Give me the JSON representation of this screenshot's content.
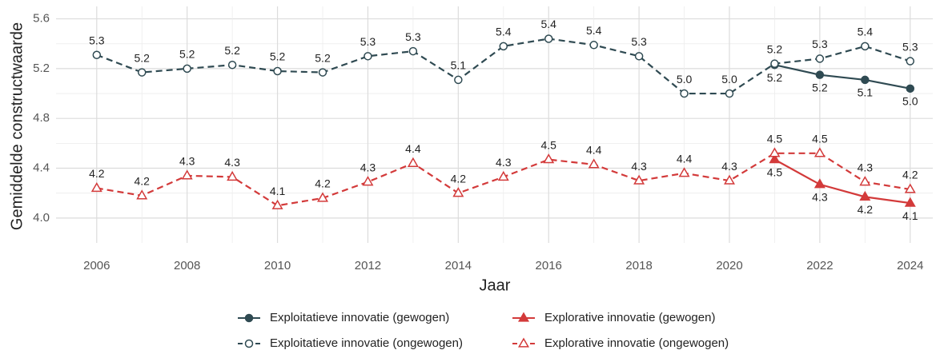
{
  "chart_data": {
    "type": "line",
    "y_label": "Gemiddelde constructwaarde",
    "x_label": "Jaar",
    "x": [
      2006,
      2007,
      2008,
      2009,
      2010,
      2011,
      2012,
      2013,
      2014,
      2015,
      2016,
      2017,
      2018,
      2019,
      2020,
      2021,
      2022,
      2023,
      2024
    ],
    "xlim": [
      2005.1,
      2024.5
    ],
    "xticks": [
      2006,
      2008,
      2010,
      2012,
      2014,
      2016,
      2018,
      2020,
      2022,
      2024
    ],
    "ylim": [
      3.8,
      5.7
    ],
    "yticks": [
      {
        "value": 4,
        "label": "4.0"
      },
      4.4,
      4.8,
      5.2,
      5.6
    ],
    "grid": true,
    "legend": "bottom",
    "series": [
      {
        "name": "Exploitatieve innovatie (gewogen)",
        "color": "#2f4a52",
        "dashed": false,
        "marker": "circle",
        "filled": true,
        "values": [
          null,
          null,
          null,
          null,
          null,
          null,
          null,
          null,
          null,
          null,
          null,
          null,
          null,
          null,
          null,
          5.23,
          5.15,
          5.11,
          5.04
        ],
        "value_labels": [
          null,
          null,
          null,
          null,
          null,
          null,
          null,
          null,
          null,
          null,
          null,
          null,
          null,
          null,
          null,
          "5.2",
          "5.2",
          "5.1",
          "5.0"
        ]
      },
      {
        "name": "Explorative innovatie (gewogen)",
        "color": "#d33a3a",
        "dashed": false,
        "marker": "triangle",
        "filled": true,
        "values": [
          null,
          null,
          null,
          null,
          null,
          null,
          null,
          null,
          null,
          null,
          null,
          null,
          null,
          null,
          null,
          4.47,
          4.27,
          4.17,
          4.12
        ],
        "value_labels": [
          null,
          null,
          null,
          null,
          null,
          null,
          null,
          null,
          null,
          null,
          null,
          null,
          null,
          null,
          null,
          "4.5",
          "4.3",
          "4.2",
          "4.1"
        ]
      },
      {
        "name": "Exploitatieve innovatie (ongewogen)",
        "color": "#2f4a52",
        "dashed": true,
        "marker": "circle",
        "filled": false,
        "values": [
          5.31,
          5.17,
          5.2,
          5.23,
          5.18,
          5.17,
          5.3,
          5.34,
          5.11,
          5.38,
          5.44,
          5.39,
          5.3,
          5.0,
          5.0,
          5.24,
          5.28,
          5.38,
          5.26
        ],
        "value_labels": [
          "5.3",
          "5.2",
          "5.2",
          "5.2",
          "5.2",
          "5.2",
          "5.3",
          "5.3",
          "5.1",
          "5.4",
          "5.4",
          "5.4",
          "5.3",
          "5.0",
          "5.0",
          "5.2",
          "5.3",
          "5.4",
          "5.3"
        ]
      },
      {
        "name": "Explorative innovatie (ongewogen)",
        "color": "#d33a3a",
        "dashed": true,
        "marker": "triangle",
        "filled": false,
        "values": [
          4.24,
          4.18,
          4.34,
          4.33,
          4.1,
          4.16,
          4.29,
          4.44,
          4.2,
          4.33,
          4.47,
          4.43,
          4.3,
          4.36,
          4.3,
          4.52,
          4.52,
          4.29,
          4.23
        ],
        "value_labels": [
          "4.2",
          "4.2",
          "4.3",
          "4.3",
          "4.1",
          "4.2",
          "4.3",
          "4.4",
          "4.2",
          "4.3",
          "4.5",
          "4.4",
          "4.3",
          "4.4",
          "4.3",
          "4.5",
          "4.5",
          "4.3",
          "4.2"
        ]
      }
    ]
  }
}
